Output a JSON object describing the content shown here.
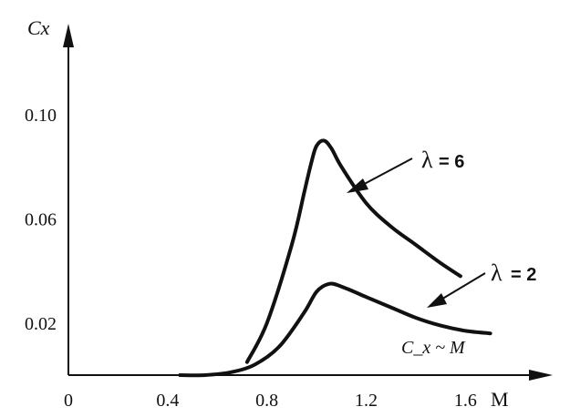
{
  "chart_data": {
    "type": "line",
    "title": "",
    "xlabel": "M",
    "ylabel": "Cx",
    "xlim": [
      0,
      1.9
    ],
    "ylim": [
      0,
      0.13
    ],
    "x_ticks": [
      "0",
      "0.4",
      "0.8",
      "1.2",
      "1.6"
    ],
    "y_ticks": [
      "0.02",
      "0.06",
      "0.10"
    ],
    "annotation": "C_x ~ M",
    "series": [
      {
        "name": "λ = 6",
        "label_symbol": "λ",
        "label_value": "= 6",
        "x": [
          0.72,
          0.8,
          0.9,
          0.95,
          0.98,
          1.0,
          1.03,
          1.06,
          1.1,
          1.2,
          1.3,
          1.4,
          1.5,
          1.58
        ],
        "y": [
          0.005,
          0.02,
          0.05,
          0.07,
          0.082,
          0.088,
          0.09,
          0.087,
          0.08,
          0.066,
          0.057,
          0.05,
          0.043,
          0.038
        ]
      },
      {
        "name": "λ = 2",
        "label_symbol": "λ",
        "label_value": "= 2",
        "x": [
          0.45,
          0.55,
          0.65,
          0.75,
          0.85,
          0.95,
          1.0,
          1.05,
          1.1,
          1.2,
          1.3,
          1.4,
          1.5,
          1.6,
          1.7
        ],
        "y": [
          0.0,
          0.0,
          0.001,
          0.004,
          0.011,
          0.024,
          0.032,
          0.035,
          0.034,
          0.03,
          0.026,
          0.022,
          0.019,
          0.017,
          0.016
        ]
      }
    ]
  }
}
